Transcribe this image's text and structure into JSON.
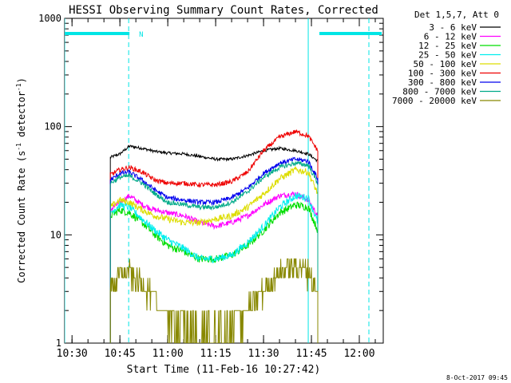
{
  "chart_data": {
    "type": "line",
    "title": "HESSI Observing Summary Count Rates, Corrected",
    "xlabel": "Start Time (11-Feb-16 10:27:42)",
    "ylabel_main": "Corrected Count Rate (s",
    "ylabel_sup1": "-1",
    "ylabel_mid": " detector",
    "ylabel_sup2": "-1",
    "ylabel_end": ")",
    "yscale": "log",
    "ylim": [
      1,
      1000
    ],
    "xlim": [
      "10:27:42",
      "12:07:30"
    ],
    "x_ticks": [
      "10:30",
      "10:45",
      "11:00",
      "11:15",
      "11:30",
      "11:45",
      "12:00"
    ],
    "y_ticks": [
      "1",
      "10",
      "100",
      "1000"
    ],
    "legend_title": "Det 1,5,7, Att 0",
    "legend_position": "top-right",
    "footer": "8-Oct-2017 09:45",
    "flag_label": "N",
    "flags": {
      "night_intervals": [
        [
          "10:27:42",
          "10:48:00"
        ],
        [
          "11:47:30",
          "12:07:00"
        ]
      ],
      "dashed_lines": [
        "10:47:45",
        "12:03:00"
      ],
      "solid_lines": [
        "10:27:42",
        "11:44:00"
      ]
    },
    "data_interval": [
      "10:42:00",
      "11:47:00"
    ],
    "series": [
      {
        "name": "3 - 6 keV",
        "color": "#000000",
        "x": [
          "10:42",
          "10:45",
          "10:48",
          "10:52",
          "10:56",
          "11:00",
          "11:05",
          "11:10",
          "11:15",
          "11:20",
          "11:25",
          "11:30",
          "11:35",
          "11:40",
          "11:44",
          "11:47"
        ],
        "values": [
          52,
          56,
          66,
          63,
          59,
          57,
          56,
          53,
          50,
          50,
          54,
          60,
          63,
          60,
          56,
          48
        ]
      },
      {
        "name": "6 - 12 keV",
        "color": "#ff00ff",
        "x": [
          "10:42",
          "10:45",
          "10:48",
          "10:52",
          "10:56",
          "11:00",
          "11:05",
          "11:10",
          "11:15",
          "11:20",
          "11:25",
          "11:30",
          "11:35",
          "11:40",
          "11:44",
          "11:47"
        ],
        "values": [
          17,
          20,
          23,
          19,
          17,
          16,
          15,
          13,
          12,
          13,
          15,
          19,
          23,
          24,
          21,
          15
        ]
      },
      {
        "name": "12 - 25 keV",
        "color": "#00dd00",
        "x": [
          "10:42",
          "10:45",
          "10:48",
          "10:52",
          "10:56",
          "11:00",
          "11:05",
          "11:10",
          "11:15",
          "11:20",
          "11:25",
          "11:30",
          "11:35",
          "11:40",
          "11:44",
          "11:47"
        ],
        "values": [
          15,
          17,
          16,
          13,
          10,
          8,
          7,
          6,
          6,
          6.5,
          8,
          11,
          16,
          19,
          18,
          11
        ]
      },
      {
        "name": "25 - 50 keV",
        "color": "#00eeee",
        "x": [
          "10:42",
          "10:45",
          "10:48",
          "10:52",
          "10:56",
          "11:00",
          "11:05",
          "11:10",
          "11:15",
          "11:20",
          "11:25",
          "11:30",
          "11:35",
          "11:40",
          "11:44",
          "11:47"
        ],
        "values": [
          16,
          19,
          18,
          14,
          11,
          9,
          7.5,
          6,
          6,
          6.5,
          8.5,
          12,
          18,
          23,
          22,
          13
        ]
      },
      {
        "name": "50 - 100 keV",
        "color": "#dddd00",
        "x": [
          "10:42",
          "10:45",
          "10:48",
          "10:52",
          "10:56",
          "11:00",
          "11:05",
          "11:10",
          "11:15",
          "11:20",
          "11:25",
          "11:30",
          "11:35",
          "11:40",
          "11:44",
          "11:47"
        ],
        "values": [
          18,
          21,
          20,
          17,
          15,
          14,
          13,
          13,
          14,
          15,
          18,
          24,
          33,
          40,
          38,
          24
        ]
      },
      {
        "name": "100 - 300 keV",
        "color": "#ee0000",
        "x": [
          "10:42",
          "10:45",
          "10:48",
          "10:52",
          "10:56",
          "11:00",
          "11:05",
          "11:10",
          "11:15",
          "11:20",
          "11:25",
          "11:30",
          "11:35",
          "11:40",
          "11:44",
          "11:47"
        ],
        "values": [
          36,
          40,
          42,
          38,
          32,
          30,
          30,
          29,
          29,
          31,
          38,
          60,
          80,
          90,
          82,
          60
        ]
      },
      {
        "name": "300 - 800 keV",
        "color": "#0000ee",
        "x": [
          "10:42",
          "10:45",
          "10:48",
          "10:52",
          "10:56",
          "11:00",
          "11:05",
          "11:10",
          "11:15",
          "11:20",
          "11:25",
          "11:30",
          "11:35",
          "11:40",
          "11:44",
          "11:47"
        ],
        "values": [
          32,
          37,
          38,
          32,
          26,
          22,
          21,
          20,
          20,
          22,
          27,
          37,
          46,
          50,
          48,
          33
        ]
      },
      {
        "name": "800 - 7000 keV",
        "color": "#00aa88",
        "x": [
          "10:42",
          "10:45",
          "10:48",
          "10:52",
          "10:56",
          "11:00",
          "11:05",
          "11:10",
          "11:15",
          "11:20",
          "11:25",
          "11:30",
          "11:35",
          "11:40",
          "11:44",
          "11:47"
        ],
        "values": [
          30,
          34,
          35,
          30,
          24,
          20,
          19,
          18,
          18,
          20,
          25,
          34,
          42,
          46,
          44,
          30
        ]
      },
      {
        "name": "7000 - 20000 keV",
        "color": "#888800",
        "x": [
          "10:42",
          "10:45",
          "10:48",
          "10:52",
          "10:56",
          "11:00",
          "11:05",
          "11:10",
          "11:15",
          "11:20",
          "11:25",
          "11:30",
          "11:35",
          "11:40",
          "11:44",
          "11:47"
        ],
        "values": [
          3.5,
          4.2,
          4.5,
          3.5,
          2.5,
          1.8,
          1.5,
          1.3,
          1.3,
          1.4,
          2.0,
          3.2,
          4.6,
          5.2,
          4.6,
          2.8
        ]
      }
    ]
  }
}
